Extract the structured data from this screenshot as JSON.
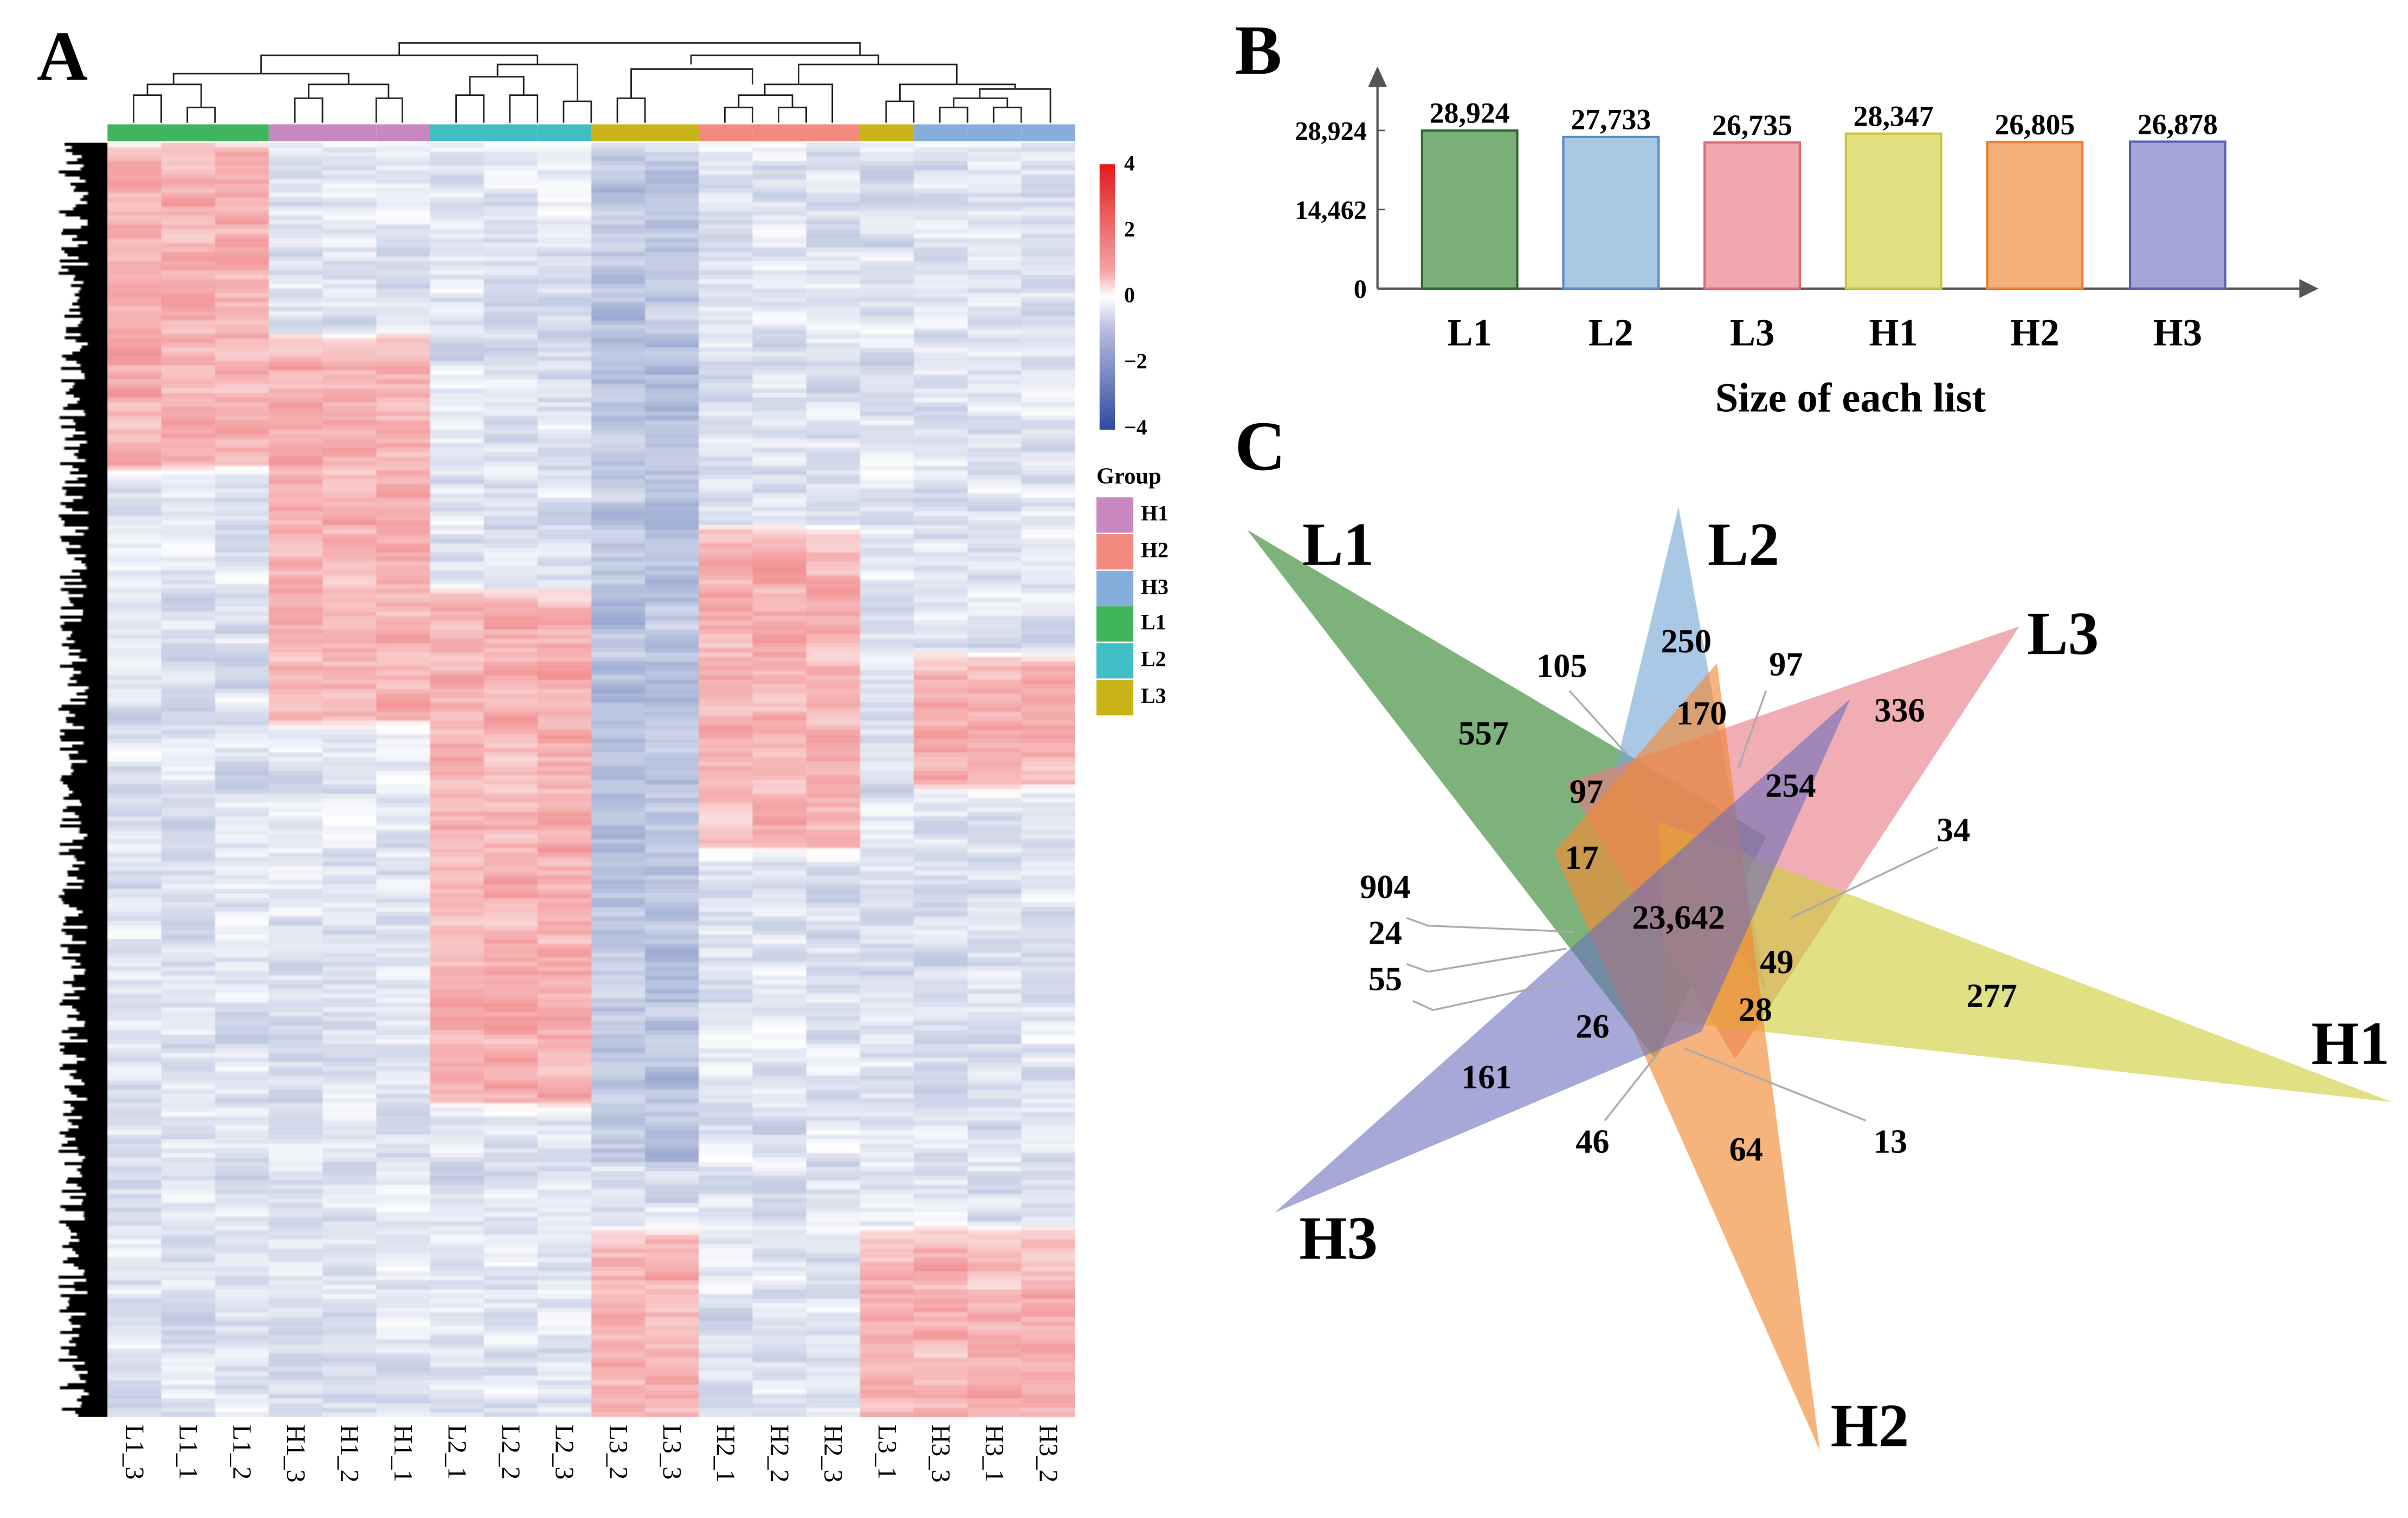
{
  "panels": {
    "a": "A",
    "b": "B",
    "c": "C"
  },
  "chart_data": [
    {
      "type": "heatmap",
      "columns": [
        "L1_3",
        "L1_1",
        "L1_2",
        "H1_3",
        "H1_2",
        "H1_1",
        "L2_1",
        "L2_2",
        "L2_3",
        "L3_2",
        "L3_3",
        "H2_1",
        "H2_2",
        "H2_3",
        "L3_1",
        "H3_3",
        "H3_1",
        "H3_2"
      ],
      "column_groups": [
        "L1",
        "L1",
        "L1",
        "H1",
        "H1",
        "H1",
        "L2",
        "L2",
        "L2",
        "L3",
        "L3",
        "H2",
        "H2",
        "H2",
        "L3",
        "H3",
        "H3",
        "H3"
      ],
      "color_scale": {
        "min": -4,
        "max": 4,
        "ticks": [
          "4",
          "2",
          "0",
          "−2",
          "−4"
        ],
        "low": "#2c4a9e",
        "mid": "#ffffff",
        "high": "#e41a1c"
      },
      "legend": {
        "title": "Group",
        "items": [
          {
            "label": "H1",
            "color": "#c987c0"
          },
          {
            "label": "H2",
            "color": "#f28a80"
          },
          {
            "label": "H3",
            "color": "#85aedd"
          },
          {
            "label": "L1",
            "color": "#3fb55c"
          },
          {
            "label": "L2",
            "color": "#40bec6"
          },
          {
            "label": "L3",
            "color": "#c9b418"
          }
        ]
      }
    },
    {
      "type": "bar",
      "categories": [
        "L1",
        "L2",
        "L3",
        "H1",
        "H2",
        "H3"
      ],
      "values": [
        28924,
        27733,
        26735,
        28347,
        26805,
        26878
      ],
      "value_labels": [
        "28,924",
        "27,733",
        "26,735",
        "28,347",
        "26,805",
        "26,878"
      ],
      "colors": [
        "#7aaf78",
        "#a8c8e4",
        "#f0a8ae",
        "#e2e080",
        "#f5b07a",
        "#a4a6d8"
      ],
      "borders": [
        "#2e6b2e",
        "#5b8ec2",
        "#e06a75",
        "#c8c640",
        "#ee7f30",
        "#5d60b5"
      ],
      "ytick_labels": [
        "28,924",
        "14,462",
        "0"
      ],
      "yticks": [
        28924,
        14462,
        0
      ],
      "ylim": [
        0,
        28924
      ],
      "xlabel": "Size of each list",
      "ylabel": ""
    },
    {
      "type": "venn",
      "sets": [
        "L1",
        "L2",
        "L3",
        "H1",
        "H2",
        "H3"
      ],
      "counts": [
        "557",
        "105",
        "250",
        "97",
        "170",
        "336",
        "254",
        "97",
        "17",
        "34",
        "904",
        "24",
        "55",
        "23,642",
        "49",
        "28",
        "277",
        "26",
        "161",
        "46",
        "64",
        "13"
      ]
    }
  ]
}
